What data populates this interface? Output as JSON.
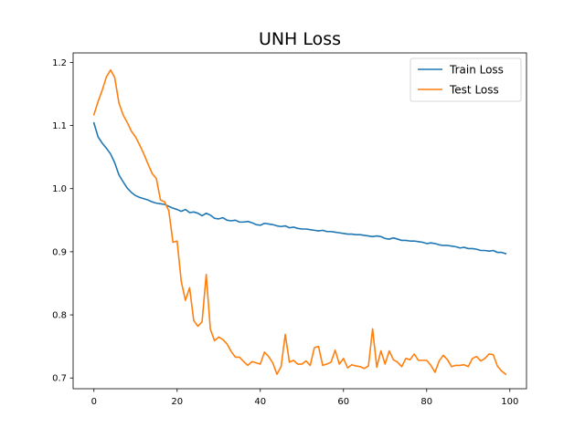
{
  "chart_data": {
    "type": "line",
    "title": "UNH Loss",
    "xlabel": "",
    "ylabel": "",
    "xlim": [
      -5,
      104
    ],
    "ylim": [
      0.683,
      1.215
    ],
    "xticks": [
      0,
      20,
      40,
      60,
      80,
      100
    ],
    "yticks": [
      0.7,
      0.8,
      0.9,
      1.0,
      1.1,
      1.2
    ],
    "ytick_labels": [
      "0.7",
      "0.8",
      "0.9",
      "1.0",
      "1.1",
      "1.2"
    ],
    "grid": false,
    "legend_position": "top-right",
    "series": [
      {
        "name": "Train Loss",
        "color": "#1f77b4",
        "x": [
          0,
          1,
          2,
          3,
          4,
          5,
          6,
          7,
          8,
          9,
          10,
          11,
          12,
          13,
          14,
          15,
          16,
          17,
          18,
          19,
          20,
          21,
          22,
          23,
          24,
          25,
          26,
          27,
          28,
          29,
          30,
          31,
          32,
          33,
          34,
          35,
          36,
          37,
          38,
          39,
          40,
          41,
          42,
          43,
          44,
          45,
          46,
          47,
          48,
          49,
          50,
          51,
          52,
          53,
          54,
          55,
          56,
          57,
          58,
          59,
          60,
          61,
          62,
          63,
          64,
          65,
          66,
          67,
          68,
          69,
          70,
          71,
          72,
          73,
          74,
          75,
          76,
          77,
          78,
          79,
          80,
          81,
          82,
          83,
          84,
          85,
          86,
          87,
          88,
          89,
          90,
          91,
          92,
          93,
          94,
          95,
          96,
          97,
          98,
          99
        ],
        "values": [
          1.104,
          1.082,
          1.072,
          1.064,
          1.055,
          1.041,
          1.022,
          1.011,
          1.001,
          0.994,
          0.989,
          0.986,
          0.984,
          0.982,
          0.979,
          0.977,
          0.976,
          0.975,
          0.972,
          0.969,
          0.967,
          0.964,
          0.967,
          0.962,
          0.963,
          0.961,
          0.957,
          0.961,
          0.958,
          0.953,
          0.952,
          0.954,
          0.95,
          0.949,
          0.95,
          0.947,
          0.947,
          0.948,
          0.946,
          0.943,
          0.942,
          0.945,
          0.944,
          0.943,
          0.941,
          0.94,
          0.941,
          0.938,
          0.939,
          0.937,
          0.936,
          0.936,
          0.935,
          0.934,
          0.933,
          0.934,
          0.932,
          0.932,
          0.931,
          0.93,
          0.929,
          0.928,
          0.928,
          0.927,
          0.927,
          0.926,
          0.925,
          0.924,
          0.925,
          0.924,
          0.921,
          0.92,
          0.922,
          0.92,
          0.918,
          0.918,
          0.917,
          0.917,
          0.916,
          0.915,
          0.913,
          0.914,
          0.913,
          0.911,
          0.91,
          0.91,
          0.909,
          0.908,
          0.906,
          0.907,
          0.905,
          0.905,
          0.904,
          0.902,
          0.902,
          0.901,
          0.902,
          0.899,
          0.899,
          0.897
        ]
      },
      {
        "name": "Test Loss",
        "color": "#ff7f0e",
        "x": [
          0,
          1,
          2,
          3,
          4,
          5,
          6,
          7,
          8,
          9,
          10,
          11,
          12,
          13,
          14,
          15,
          16,
          17,
          18,
          19,
          20,
          21,
          22,
          23,
          24,
          25,
          26,
          27,
          28,
          29,
          30,
          31,
          32,
          33,
          34,
          35,
          36,
          37,
          38,
          39,
          40,
          41,
          42,
          43,
          44,
          45,
          46,
          47,
          48,
          49,
          50,
          51,
          52,
          53,
          54,
          55,
          56,
          57,
          58,
          59,
          60,
          61,
          62,
          63,
          64,
          65,
          66,
          67,
          68,
          69,
          70,
          71,
          72,
          73,
          74,
          75,
          76,
          77,
          78,
          79,
          80,
          81,
          82,
          83,
          84,
          85,
          86,
          87,
          88,
          89,
          90,
          91,
          92,
          93,
          94,
          95,
          96,
          97,
          98,
          99
        ],
        "values": [
          1.117,
          1.138,
          1.156,
          1.177,
          1.188,
          1.176,
          1.136,
          1.117,
          1.105,
          1.091,
          1.082,
          1.069,
          1.055,
          1.039,
          1.024,
          1.016,
          0.982,
          0.979,
          0.965,
          0.915,
          0.917,
          0.853,
          0.823,
          0.843,
          0.791,
          0.782,
          0.789,
          0.864,
          0.777,
          0.759,
          0.765,
          0.761,
          0.754,
          0.742,
          0.733,
          0.733,
          0.726,
          0.72,
          0.726,
          0.724,
          0.722,
          0.741,
          0.734,
          0.724,
          0.706,
          0.718,
          0.769,
          0.725,
          0.728,
          0.722,
          0.722,
          0.727,
          0.72,
          0.748,
          0.75,
          0.72,
          0.722,
          0.725,
          0.744,
          0.722,
          0.731,
          0.716,
          0.721,
          0.719,
          0.718,
          0.715,
          0.719,
          0.778,
          0.717,
          0.743,
          0.722,
          0.743,
          0.729,
          0.725,
          0.718,
          0.731,
          0.729,
          0.738,
          0.728,
          0.728,
          0.728,
          0.72,
          0.709,
          0.727,
          0.736,
          0.729,
          0.718,
          0.72,
          0.72,
          0.721,
          0.718,
          0.731,
          0.734,
          0.727,
          0.731,
          0.738,
          0.737,
          0.719,
          0.711,
          0.706
        ]
      }
    ]
  }
}
